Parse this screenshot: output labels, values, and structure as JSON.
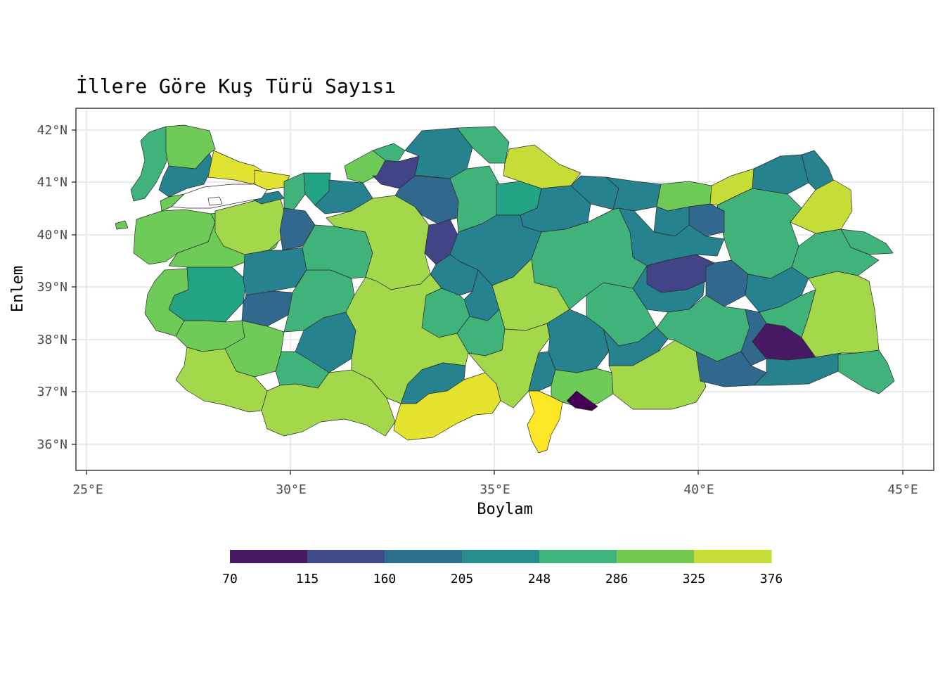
{
  "chart_data": {
    "type": "choropleth",
    "title": "İllere Göre Kuş Türü Sayısı",
    "xlabel": "Boylam",
    "ylabel": "Enlem",
    "x_ticks": [
      "25°E",
      "30°E",
      "35°E",
      "40°E",
      "45°E"
    ],
    "y_ticks": [
      "36°N",
      "37°N",
      "38°N",
      "39°N",
      "40°N",
      "41°N",
      "42°N"
    ],
    "x_range": [
      24.75,
      45.7
    ],
    "y_range": [
      35.5,
      42.4
    ],
    "grid": true,
    "legend": {
      "position": "bottom",
      "breaks": [
        "70",
        "115",
        "160",
        "205",
        "248",
        "286",
        "325",
        "376"
      ],
      "colors": [
        "#471a63",
        "#3e4a89",
        "#2d6f8e",
        "#268e8c",
        "#3db57b",
        "#74ca4f",
        "#c6dd38"
      ]
    },
    "palette": {
      "very_low": "#440154",
      "low": "#414487",
      "low_mid": "#31688e",
      "mid": "#26828e",
      "mid_teal": "#21a384",
      "mid_high": "#40b37a",
      "high": "#6ecb57",
      "higher": "#a2d84a",
      "very_high": "#d6e23a",
      "max": "#fde725"
    }
  }
}
